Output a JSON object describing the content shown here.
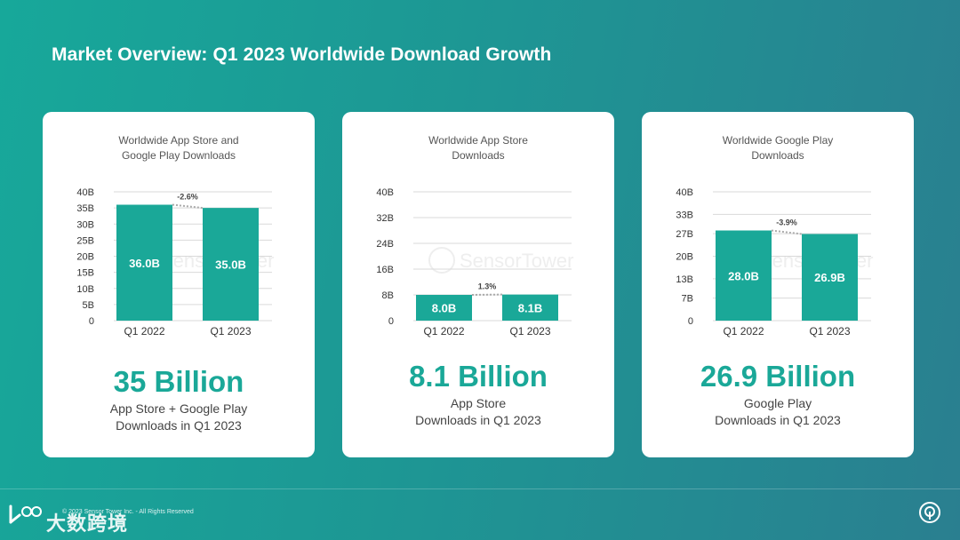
{
  "page": {
    "title": "Market Overview: Q1 2023 Worldwide Download Growth",
    "copyright": "© 2023 Sensor Tower Inc. - All Rights Reserved",
    "watermark": "SensorTower",
    "brand_cn": "大数跨境",
    "brand_logo": "LOGO",
    "colors": {
      "accent": "#1aa898",
      "bar": "#1aa898",
      "grid": "#d9d9d9",
      "background_start": "#17a89a",
      "background_end": "#2a7f90"
    }
  },
  "cards": [
    {
      "heading": [
        "Worldwide App Store and",
        "Google Play Downloads"
      ],
      "big_number": "35 Billion",
      "subtitle": [
        "App Store + Google Play",
        "Downloads in Q1 2023"
      ]
    },
    {
      "heading": [
        "Worldwide App Store",
        "Downloads"
      ],
      "big_number": "8.1 Billion",
      "subtitle": [
        "App Store",
        "Downloads in Q1 2023"
      ]
    },
    {
      "heading": [
        "Worldwide Google Play",
        "Downloads"
      ],
      "big_number": "26.9 Billion",
      "subtitle": [
        "Google Play",
        "Downloads in Q1 2023"
      ]
    }
  ],
  "chart_data": [
    {
      "type": "bar",
      "title": "Worldwide App Store and Google Play Downloads",
      "categories": [
        "Q1 2022",
        "Q1 2023"
      ],
      "values": [
        36.0,
        35.0
      ],
      "data_labels": [
        "36.0B",
        "35.0B"
      ],
      "ylim": [
        0,
        40
      ],
      "yticks": [
        0,
        5,
        10,
        15,
        20,
        25,
        30,
        35,
        40
      ],
      "ytick_labels": [
        "0",
        "5B",
        "10B",
        "15B",
        "20B",
        "25B",
        "30B",
        "35B",
        "40B"
      ],
      "change_label": "-2.6%",
      "grid": true
    },
    {
      "type": "bar",
      "title": "Worldwide App Store Downloads",
      "categories": [
        "Q1 2022",
        "Q1 2023"
      ],
      "values": [
        8.0,
        8.1
      ],
      "data_labels": [
        "8.0B",
        "8.1B"
      ],
      "ylim": [
        0,
        40
      ],
      "yticks": [
        0,
        8,
        16,
        24,
        32,
        40
      ],
      "ytick_labels": [
        "0",
        "8B",
        "16B",
        "24B",
        "32B",
        "40B"
      ],
      "change_label": "1.3%",
      "grid": true
    },
    {
      "type": "bar",
      "title": "Worldwide Google Play Downloads",
      "categories": [
        "Q1 2022",
        "Q1 2023"
      ],
      "values": [
        28.0,
        26.9
      ],
      "data_labels": [
        "28.0B",
        "26.9B"
      ],
      "ylim": [
        0,
        40
      ],
      "yticks": [
        0,
        7,
        13,
        20,
        27,
        33,
        40
      ],
      "ytick_labels": [
        "0",
        "7B",
        "13B",
        "20B",
        "27B",
        "33B",
        "40B"
      ],
      "change_label": "-3.9%",
      "grid": true
    }
  ]
}
